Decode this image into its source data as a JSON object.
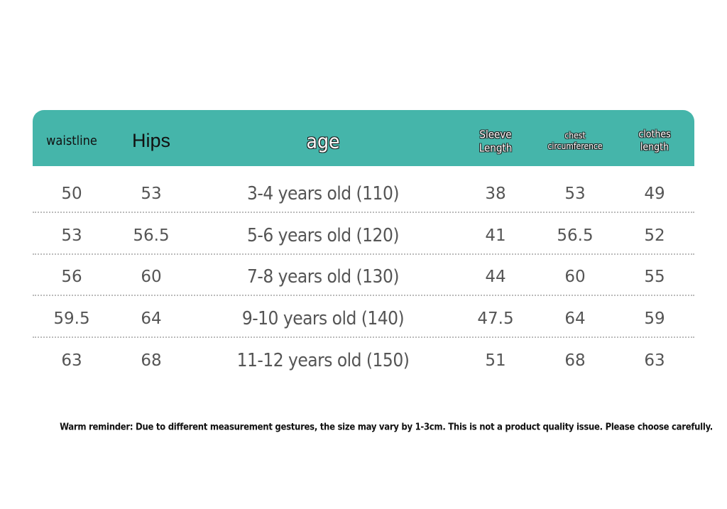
{
  "table": {
    "headers": [
      "waistline",
      "Hips",
      "age",
      "Sleeve Length",
      "chest circumference",
      "clothes length"
    ],
    "rows": [
      [
        50,
        53,
        "3-4 years old (110)",
        38,
        53,
        49
      ],
      [
        53,
        56.5,
        "5-6 years old (120)",
        41,
        56.5,
        52
      ],
      [
        56,
        60,
        "7-8 years old (130)",
        44,
        60,
        55
      ],
      [
        59.5,
        64,
        "9-10 years old (140)",
        47.5,
        64,
        59
      ],
      [
        63,
        68,
        "11-12 years old (150)",
        51,
        68,
        63
      ]
    ]
  },
  "reminder": "Warm reminder: Due to different measurement gestures, the size may vary by 1-3cm. This is not a product quality issue. Please choose carefully."
}
